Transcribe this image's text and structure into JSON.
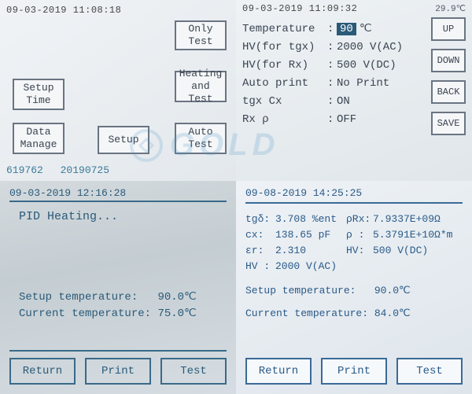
{
  "panel1": {
    "timestamp": "09-03-2019  11:08:18",
    "buttons": {
      "only_test": "Only\nTest",
      "heating_test": "Heating\nand Test",
      "setup_time": "Setup\nTime",
      "data_manage": "Data\nManage",
      "setup": "Setup",
      "auto_test": "Auto\nTest"
    },
    "footer": {
      "code1": "619762",
      "code2": "20190725"
    }
  },
  "panel2": {
    "timestamp": "09-03-2019  11:09:32",
    "topright": "29.9℃",
    "rows": [
      {
        "label": "Temperature",
        "value_hl": "90",
        "value_suffix": "℃"
      },
      {
        "label": "HV(for tgx)",
        "value": "2000 V(AC)"
      },
      {
        "label": "HV(for Rx)",
        "value": " 500 V(DC)"
      },
      {
        "label": "Auto print",
        "value": "No Print"
      },
      {
        "label": "tgx Cx",
        "value": "ON"
      },
      {
        "label": "Rx ρ",
        "value": "OFF"
      }
    ],
    "side_buttons": [
      "UP",
      "DOWN",
      "BACK",
      "SAVE"
    ]
  },
  "panel3": {
    "timestamp": "09-03-2019  12:16:28",
    "heading": "PID Heating...",
    "setup_temp_label": "Setup temperature:",
    "setup_temp_value": "90.0℃",
    "current_temp_label": "Current temperature:",
    "current_temp_value": "75.0℃",
    "buttons": {
      "return": "Return",
      "print": "Print",
      "test": "Test"
    }
  },
  "panel4": {
    "timestamp": "09-08-2019  14:25:25",
    "measurements": {
      "tgd_label": "tgδ:",
      "tgd_value": "3.708 %ent",
      "pRx_label": "ρRx:",
      "pRx_value": "7.9337E+09Ω",
      "cx_label": "cx:",
      "cx_value": "138.65 pF",
      "rho_label": "ρ :",
      "rho_value": "5.3791E+10Ω*m",
      "er_label": "εr:",
      "er_value": "2.310",
      "hv_dc_label": "HV:",
      "hv_dc_value": " 500 V(DC)",
      "hv_ac_label": "HV :",
      "hv_ac_value": "2000 V(AC)"
    },
    "setup_temp_label": "Setup temperature:",
    "setup_temp_value": "90.0℃",
    "current_temp_label": "Current temperature:",
    "current_temp_value": "84.0℃",
    "buttons": {
      "return": "Return",
      "print": "Print",
      "test": "Test"
    }
  },
  "watermark": "GOLD",
  "colors": {
    "border": "#6a7482",
    "text_dark": "#3a4450",
    "text_blue": "#2a5a78",
    "highlight_bg": "#2a5a78"
  }
}
